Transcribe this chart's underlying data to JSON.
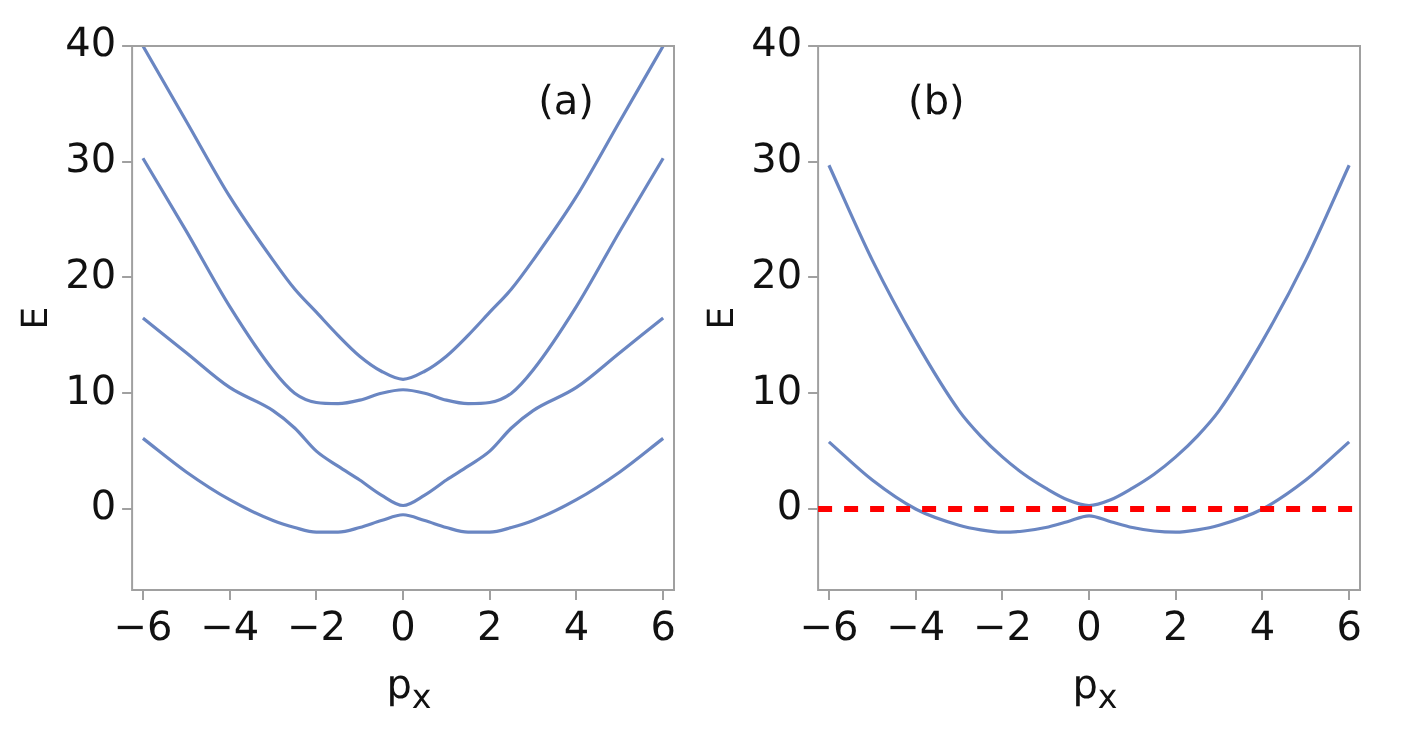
{
  "chart_data": [
    {
      "type": "line",
      "xlabel": "p$_{x}$",
      "ylabel": "E",
      "annotations": [
        "(a)"
      ],
      "x": [
        -6,
        -5,
        -4,
        -3,
        -2.5,
        -2,
        -1.5,
        -1,
        -0.5,
        0,
        0.5,
        1,
        1.5,
        2,
        2.5,
        3,
        4,
        5,
        6
      ],
      "xlim": [
        -6.25,
        6.25
      ],
      "xticks": [
        -6,
        -4,
        -2,
        0,
        2,
        4,
        6
      ],
      "ylim": [
        -7,
        40
      ],
      "yticks": [
        0,
        10,
        20,
        30,
        40
      ],
      "grid": false,
      "legend": false,
      "marker": "none",
      "line_style": "solid",
      "series": [
        {
          "color": "#6a86c2",
          "values": [
            40,
            33.5,
            27,
            21.5,
            19,
            17,
            15,
            13.2,
            11.9,
            11.2,
            11.9,
            13.2,
            15,
            17,
            19,
            21.5,
            27,
            33.5,
            40
          ]
        },
        {
          "color": "#6a86c2",
          "values": [
            30.3,
            24,
            17.5,
            12,
            10,
            9.2,
            9.1,
            9.4,
            10,
            10.3,
            10,
            9.4,
            9.1,
            9.2,
            10,
            12,
            17.5,
            24,
            30.3
          ]
        },
        {
          "color": "#6a86c2",
          "values": [
            16.5,
            13.5,
            10.5,
            8.5,
            7,
            5,
            3.7,
            2.5,
            1.2,
            0.3,
            1.2,
            2.5,
            3.7,
            5,
            7,
            8.5,
            10.5,
            13.5,
            16.5
          ]
        },
        {
          "color": "#6a86c2",
          "values": [
            6.1,
            3.2,
            0.8,
            -1,
            -1.6,
            -2,
            -2,
            -1.6,
            -1,
            -0.5,
            -1,
            -1.6,
            -2,
            -2,
            -1.6,
            -1,
            0.8,
            3.2,
            6.1
          ]
        }
      ]
    },
    {
      "type": "line",
      "xlabel": "p$_{x}$",
      "ylabel": "E",
      "annotations": [
        "(b)"
      ],
      "x": [
        -6,
        -5,
        -4,
        -3,
        -2.5,
        -2,
        -1.5,
        -1,
        -0.5,
        0,
        0.5,
        1,
        1.5,
        2,
        2.5,
        3,
        4,
        5,
        6
      ],
      "xlim": [
        -6.25,
        6.25
      ],
      "xticks": [
        -6,
        -4,
        -2,
        0,
        2,
        4,
        6
      ],
      "ylim": [
        -7,
        40
      ],
      "yticks": [
        0,
        10,
        20,
        30,
        40
      ],
      "grid": false,
      "legend": false,
      "marker": "none",
      "line_style": "solid",
      "ref_lines": [
        {
          "axis": "y",
          "value": 0,
          "color": "#ff0000",
          "line_style": "dashed"
        }
      ],
      "series": [
        {
          "color": "#6a86c2",
          "values": [
            29.7,
            21.5,
            14.5,
            8.5,
            6.3,
            4.5,
            3,
            1.8,
            0.8,
            0.3,
            0.8,
            1.8,
            3,
            4.5,
            6.3,
            8.5,
            14.5,
            21.5,
            29.7
          ]
        },
        {
          "color": "#6a86c2",
          "values": [
            5.8,
            2.5,
            0,
            -1.4,
            -1.8,
            -2,
            -1.9,
            -1.6,
            -1.1,
            -0.6,
            -1.1,
            -1.6,
            -1.9,
            -2,
            -1.8,
            -1.4,
            0,
            2.5,
            5.8
          ]
        }
      ]
    }
  ]
}
